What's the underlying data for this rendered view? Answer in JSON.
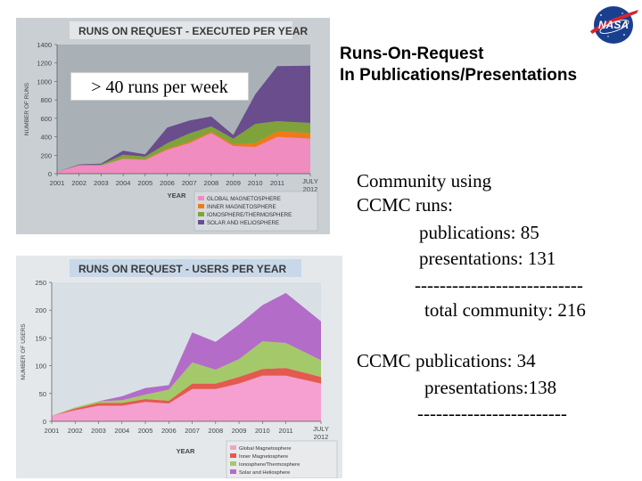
{
  "slide": {
    "title_lines": [
      "Runs-On-Request",
      "In Publications/Presentations"
    ],
    "callout": "> 40 runs per week",
    "logo_text": "NASA",
    "lines": [
      "Community using",
      "CCMC runs:",
      "publications: 85",
      "presentations: 131",
      "---------------------------",
      "total community: 216",
      "CCMC publications: 34",
      "presentations:138",
      "------------------------"
    ]
  },
  "chart_data": [
    {
      "type": "area",
      "stacked": true,
      "title": "Runs on Request - Executed per Year",
      "xlabel": "Year",
      "ylabel": "Number of Runs",
      "ylim": [
        0,
        1400
      ],
      "yticks": [
        0,
        200,
        400,
        600,
        800,
        1000,
        1200,
        1400
      ],
      "x": [
        2001,
        2002,
        2003,
        2004,
        2005,
        2006,
        2007,
        2008,
        2009,
        2010,
        2011,
        2012.5
      ],
      "x_tick_labels": [
        "2001",
        "2002",
        "2003",
        "2004",
        "2005",
        "2006",
        "2007",
        "2008",
        "2009",
        "2010",
        "2011",
        "July 2012"
      ],
      "legend_position": "bottom-right",
      "grid": false,
      "series": [
        {
          "name": "Global Magnetosphere",
          "color": "#f08cc0",
          "values": [
            20,
            90,
            90,
            160,
            150,
            260,
            330,
            440,
            300,
            290,
            400,
            380
          ]
        },
        {
          "name": "Inner Magnetosphere",
          "color": "#f07a1a",
          "values": [
            0,
            0,
            0,
            5,
            5,
            10,
            15,
            15,
            20,
            40,
            60,
            60
          ]
        },
        {
          "name": "Ionosphere/Thermosphere",
          "color": "#7fa33a",
          "values": [
            0,
            5,
            10,
            40,
            30,
            60,
            90,
            60,
            60,
            210,
            110,
            110
          ]
        },
        {
          "name": "Solar and Heliosphere",
          "color": "#6a4d8c",
          "values": [
            0,
            5,
            10,
            45,
            25,
            170,
            140,
            105,
            40,
            320,
            595,
            620
          ]
        }
      ]
    },
    {
      "type": "area",
      "stacked": true,
      "title": "Runs on Request - Users per Year",
      "xlabel": "Year",
      "ylabel": "Number of Users",
      "ylim": [
        0,
        250
      ],
      "yticks": [
        0,
        50,
        100,
        150,
        200,
        250
      ],
      "x": [
        2001,
        2002,
        2003,
        2004,
        2005,
        2006,
        2007,
        2008,
        2009,
        2010,
        2011,
        2012.5
      ],
      "x_tick_labels": [
        "2001",
        "2002",
        "2003",
        "2004",
        "2005",
        "2006",
        "2007",
        "2008",
        "2009",
        "2010",
        "2011",
        "July 2012"
      ],
      "legend_position": "bottom-right",
      "grid": false,
      "series": [
        {
          "name": "Global Magnetosphere",
          "color": "#f5a0d0",
          "values": [
            10,
            20,
            28,
            28,
            35,
            32,
            58,
            58,
            68,
            82,
            82,
            68
          ]
        },
        {
          "name": "Inner Magnetosphere",
          "color": "#e45a4e",
          "values": [
            0,
            3,
            5,
            5,
            5,
            5,
            10,
            10,
            12,
            12,
            14,
            12
          ]
        },
        {
          "name": "Ionosphere/Thermosphere",
          "color": "#a4c96a",
          "values": [
            0,
            2,
            3,
            5,
            8,
            20,
            38,
            25,
            32,
            50,
            45,
            30
          ]
        },
        {
          "name": "Solar and Heliosphere",
          "color": "#b36cc8",
          "values": [
            0,
            0,
            0,
            7,
            12,
            8,
            54,
            50,
            62,
            65,
            90,
            70
          ]
        }
      ]
    }
  ]
}
